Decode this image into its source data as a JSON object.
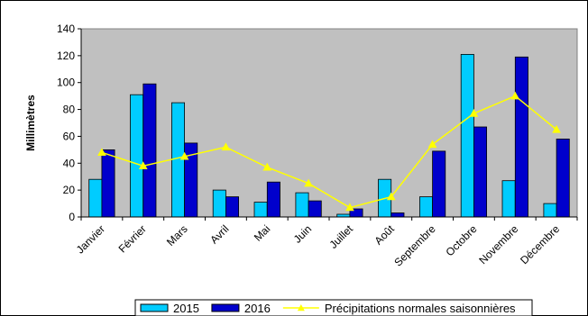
{
  "chart_data": {
    "type": "bar",
    "ylabel": "Millimètres",
    "xlabel": "",
    "ylim": [
      0,
      140
    ],
    "yticks": [
      0,
      20,
      40,
      60,
      80,
      100,
      120,
      140
    ],
    "grid": false,
    "legend_position": "bottom",
    "categories": [
      "Janvier",
      "Février",
      "Mars",
      "Avril",
      "Mai",
      "Juin",
      "Juillet",
      "Août",
      "Septembre",
      "Octobre",
      "Novembre",
      "Décembre"
    ],
    "series": [
      {
        "name": "2015",
        "kind": "bar",
        "color": "#00ccff",
        "values": [
          28,
          91,
          85,
          20,
          11,
          18,
          2,
          28,
          15,
          121,
          27,
          10
        ]
      },
      {
        "name": "2016",
        "kind": "bar",
        "color": "#0000cc",
        "values": [
          50,
          99,
          55,
          15,
          26,
          12,
          6,
          3,
          49,
          67,
          119,
          58
        ]
      },
      {
        "name": "Précipitations  normales saisonnières",
        "kind": "line",
        "color": "#ffff00",
        "values": [
          48,
          38,
          45,
          52,
          37,
          25,
          7,
          15,
          54,
          77,
          90,
          65
        ]
      }
    ],
    "plot_background": "#c0c0c0"
  }
}
